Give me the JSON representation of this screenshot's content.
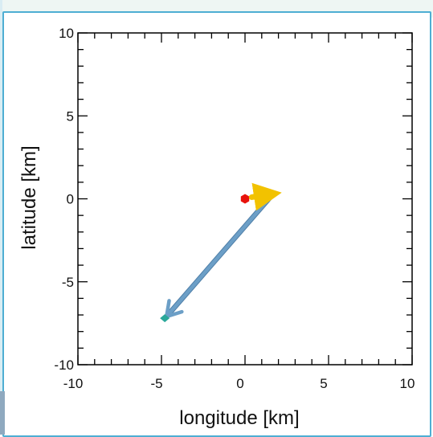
{
  "chart_data": {
    "type": "scatter",
    "title": "",
    "xlabel": "longitude [km]",
    "ylabel": "latitude [km]",
    "xlim": [
      -10,
      10
    ],
    "ylim": [
      -10,
      10
    ],
    "xticks": [
      -10,
      -5,
      0,
      5,
      10
    ],
    "yticks": [
      -10,
      -5,
      0,
      5,
      10
    ],
    "xtick_labels": [
      "-10",
      "-5",
      "0",
      "5",
      "10"
    ],
    "ytick_labels": [
      "-10",
      "-5",
      "0",
      "5",
      "10"
    ],
    "minor_tick_step": 1,
    "grid": false,
    "points": [
      {
        "x": 0.0,
        "y": 0.0,
        "color": "#e8120c",
        "marker": "hexagon"
      },
      {
        "x": 1.6,
        "y": 0.3,
        "color": "#e3a21a",
        "marker": "triangle"
      },
      {
        "x": -4.8,
        "y": -7.2,
        "color": "#2aa89a",
        "marker": "diamond"
      }
    ],
    "arrows": [
      {
        "from": [
          0.4,
          0.1
        ],
        "to": [
          1.7,
          0.3
        ],
        "color": "#f2c200"
      },
      {
        "from": [
          1.6,
          0.2
        ],
        "to": [
          -4.7,
          -7.1
        ],
        "color": "#6c9fc7"
      }
    ]
  }
}
